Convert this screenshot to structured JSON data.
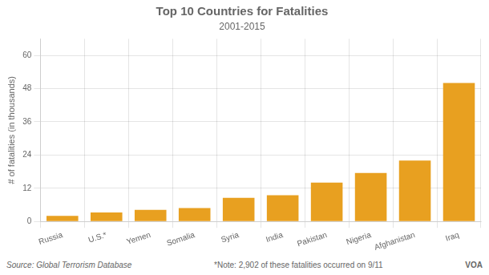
{
  "chart_data": {
    "type": "bar",
    "title": "Top 10 Countries for Fatalities",
    "subtitle": "2001-2015",
    "categories": [
      "Russia",
      "U.S.*",
      "Yemen",
      "Somalia",
      "Syria",
      "India",
      "Pakistan",
      "Nigeria",
      "Afghanistan",
      "Iraq"
    ],
    "values": [
      2.0,
      3.2,
      4.2,
      4.8,
      8.5,
      9.5,
      14.0,
      17.5,
      22.0,
      50.0
    ],
    "color": "#E8A020",
    "ylabel": "# of fatalities (in thousands)",
    "ylim": [
      0,
      66
    ],
    "yticks": [
      0,
      12,
      24,
      36,
      48,
      60
    ],
    "grid": true,
    "annotations": [
      "Source: Global Terrorism Database",
      "*Note: 2,902 of these fatalities occurred on 9/11",
      "VOA"
    ]
  }
}
